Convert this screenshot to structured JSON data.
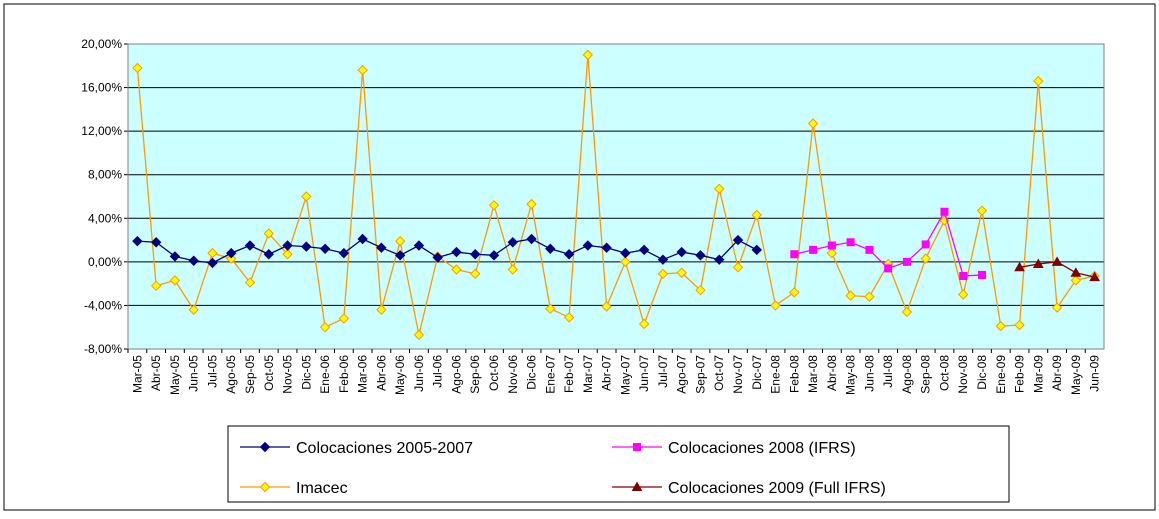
{
  "chart_data": {
    "type": "line",
    "categories": [
      "Mar-05",
      "Abr-05",
      "May-05",
      "Jun-05",
      "Jul-05",
      "Ago-05",
      "Sep-05",
      "Oct-05",
      "Nov-05",
      "Dic-05",
      "Ene-06",
      "Feb-06",
      "Mar-06",
      "Abr-06",
      "May-06",
      "Jun-06",
      "Jul-06",
      "Ago-06",
      "Sep-06",
      "Oct-06",
      "Nov-06",
      "Dic-06",
      "Ene-07",
      "Feb-07",
      "Mar-07",
      "Abr-07",
      "May-07",
      "Jun-07",
      "Jul-07",
      "Ago-07",
      "Sep-07",
      "Oct-07",
      "Nov-07",
      "Dic-07",
      "Ene-08",
      "Feb-08",
      "Mar-08",
      "Abr-08",
      "May-08",
      "Jun-08",
      "Jul-08",
      "Ago-08",
      "Sep-08",
      "Oct-08",
      "Nov-08",
      "Dic-08",
      "Ene-09",
      "Feb-09",
      "Mar-09",
      "Abr-09",
      "May-09",
      "Jun-09"
    ],
    "series": [
      {
        "name": "Colocaciones 2005-2007",
        "color": "#000080",
        "marker": "diamond",
        "values": [
          1.9,
          1.8,
          0.5,
          0.1,
          -0.1,
          0.8,
          1.5,
          0.7,
          1.5,
          1.4,
          1.2,
          0.8,
          2.1,
          1.3,
          0.6,
          1.5,
          0.4,
          0.9,
          0.7,
          0.6,
          1.8,
          2.1,
          1.2,
          0.7,
          1.5,
          1.3,
          0.8,
          1.1,
          0.2,
          0.9,
          0.6,
          0.2,
          2.0,
          1.1,
          null,
          null,
          null,
          null,
          null,
          null,
          null,
          null,
          null,
          null,
          null,
          null,
          null,
          null,
          null,
          null,
          null,
          null
        ]
      },
      {
        "name": "Colocaciones 2008 (IFRS)",
        "color": "#ff00ff",
        "marker": "square",
        "values": [
          null,
          null,
          null,
          null,
          null,
          null,
          null,
          null,
          null,
          null,
          null,
          null,
          null,
          null,
          null,
          null,
          null,
          null,
          null,
          null,
          null,
          null,
          null,
          null,
          null,
          null,
          null,
          null,
          null,
          null,
          null,
          null,
          null,
          null,
          null,
          0.7,
          1.1,
          1.5,
          1.8,
          1.1,
          -0.6,
          0.0,
          1.6,
          4.6,
          -1.3,
          -1.2,
          null,
          null,
          null,
          null,
          null,
          null
        ]
      },
      {
        "name": "Imacec",
        "color": "#ff9900",
        "marker": "diamond",
        "marker_fill": "#ffff00",
        "values": [
          17.8,
          -2.2,
          -1.7,
          -4.4,
          0.8,
          0.3,
          -1.9,
          2.6,
          0.7,
          6.0,
          -6.0,
          -5.2,
          17.6,
          -4.4,
          1.9,
          -6.7,
          0.5,
          -0.7,
          -1.1,
          5.2,
          -0.7,
          5.3,
          -4.3,
          -5.1,
          19.0,
          -4.1,
          0.0,
          -5.7,
          -1.1,
          -1.0,
          -2.6,
          6.7,
          -0.5,
          4.3,
          -4.0,
          -2.8,
          12.7,
          0.8,
          -3.1,
          -3.2,
          -0.2,
          -4.6,
          0.3,
          3.8,
          -3.0,
          4.7,
          -5.9,
          -5.8,
          16.6,
          -4.2,
          -1.7,
          -1.3
        ]
      },
      {
        "name": "Colocaciones 2009 (Full IFRS)",
        "color": "#800000",
        "marker": "triangle",
        "values": [
          null,
          null,
          null,
          null,
          null,
          null,
          null,
          null,
          null,
          null,
          null,
          null,
          null,
          null,
          null,
          null,
          null,
          null,
          null,
          null,
          null,
          null,
          null,
          null,
          null,
          null,
          null,
          null,
          null,
          null,
          null,
          null,
          null,
          null,
          null,
          null,
          null,
          null,
          null,
          null,
          null,
          null,
          null,
          null,
          null,
          null,
          null,
          -0.5,
          -0.2,
          0.0,
          -1.0,
          -1.4
        ]
      }
    ],
    "ylim": [
      -8,
      20
    ],
    "yticks": [
      {
        "value": -8,
        "label": "-8,00%"
      },
      {
        "value": -4,
        "label": "-4,00%"
      },
      {
        "value": 0,
        "label": "0,00%"
      },
      {
        "value": 4,
        "label": "4,00%"
      },
      {
        "value": 8,
        "label": "8,00%"
      },
      {
        "value": 12,
        "label": "12,00%"
      },
      {
        "value": 16,
        "label": "16,00%"
      },
      {
        "value": 20,
        "label": "20,00%"
      }
    ],
    "grid": true,
    "legend": "bottom"
  }
}
